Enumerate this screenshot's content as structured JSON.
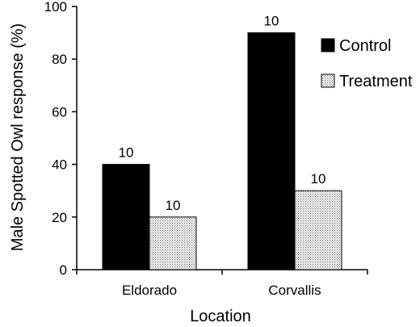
{
  "chart_data": {
    "type": "bar",
    "title": "",
    "xlabel": "Location",
    "ylabel": "Male Spotted Owl response (%)",
    "categories": [
      "Eldorado",
      "Corvallis"
    ],
    "ylim": [
      0,
      100
    ],
    "yticks": [
      0,
      20,
      40,
      60,
      80,
      100
    ],
    "grid": false,
    "legend": "right",
    "series": [
      {
        "name": "Control",
        "values": [
          40,
          90
        ],
        "labels": [
          "10",
          "10"
        ],
        "color": "#000000",
        "pattern": "solid"
      },
      {
        "name": "Treatment",
        "values": [
          20,
          30
        ],
        "labels": [
          "10",
          "10"
        ],
        "color": "#d9d9d9",
        "pattern": "stipple"
      }
    ]
  }
}
